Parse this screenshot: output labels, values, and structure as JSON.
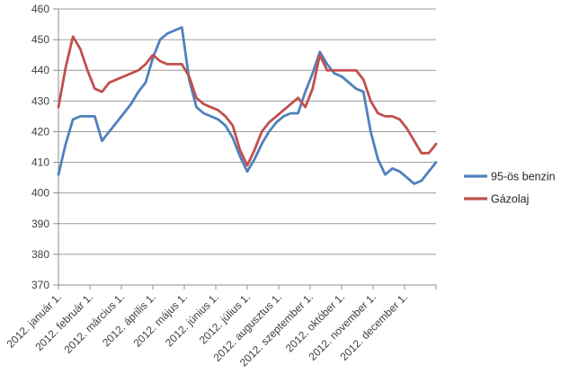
{
  "chart_data": {
    "type": "line",
    "title": "",
    "xlabel": "",
    "ylabel": "",
    "ylim": [
      370,
      460
    ],
    "y_ticks": [
      370,
      380,
      390,
      400,
      410,
      420,
      430,
      440,
      450,
      460
    ],
    "x_tick_labels": [
      "2012. január 1.",
      "2012. február 1.",
      "2012. március 1.",
      "2012. április 1.",
      "2012. május 1.",
      "2012. június 1.",
      "2012. július 1.",
      "2012. augusztus 1.",
      "2012. szeptember 1.",
      "2012. október 1.",
      "2012. november 1.",
      "2012. december 1."
    ],
    "x_resolution": "weekly (53 points, Jan 1 – Dec 31 2012)",
    "grid": true,
    "legend_position": "right",
    "axis_text_color": "#3f3f3f",
    "gridline_color": "#9c9c9c",
    "axis_line_color": "#8c8c8c",
    "series": [
      {
        "name": "95-ös benzin",
        "color": "#4F81BD",
        "values": [
          406,
          416,
          424,
          425,
          425,
          425,
          417,
          420,
          423,
          426,
          429,
          433,
          436,
          444,
          450,
          452,
          453,
          454,
          437,
          428,
          426,
          425,
          424,
          422,
          418,
          412,
          407,
          411,
          416,
          420,
          423,
          425,
          426,
          426,
          433,
          439,
          446,
          442,
          439,
          438,
          436,
          434,
          433,
          420,
          411,
          406,
          408,
          407,
          405,
          403,
          404,
          407,
          410
        ]
      },
      {
        "name": "Gázolaj",
        "color": "#C0504D",
        "values": [
          428,
          441,
          451,
          447,
          440,
          434,
          433,
          436,
          437,
          438,
          439,
          440,
          442,
          445,
          443,
          442,
          442,
          442,
          438,
          431,
          429,
          428,
          427,
          425,
          422,
          414,
          409,
          414,
          420,
          423,
          425,
          427,
          429,
          431,
          428,
          434,
          445,
          440,
          440,
          440,
          440,
          440,
          437,
          430,
          426,
          425,
          425,
          424,
          421,
          417,
          413,
          413,
          416
        ]
      }
    ]
  }
}
